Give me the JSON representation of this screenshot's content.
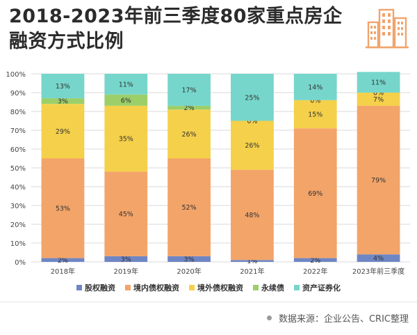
{
  "header": {
    "title": "2018-2023年前三季度80家重点房企融资方式比例"
  },
  "footer": {
    "source": "数据来源：企业公告、CRIC整理"
  },
  "colors": {
    "series": [
      "#6f86c5",
      "#f3a469",
      "#f5d04a",
      "#9ccf6a",
      "#76d6cb"
    ],
    "logo": "#f0a46d"
  },
  "chart_data": {
    "type": "bar",
    "stacked": true,
    "title": "2018-2023年前三季度80家重点房企融资方式比例",
    "xlabel": "",
    "ylabel": "",
    "ylim": [
      0,
      100
    ],
    "yticks": [
      "0%",
      "10%",
      "20%",
      "30%",
      "40%",
      "50%",
      "60%",
      "70%",
      "80%",
      "90%",
      "100%"
    ],
    "categories": [
      "2018年",
      "2019年",
      "2020年",
      "2021年",
      "2022年",
      "2023年前三季度"
    ],
    "series": [
      {
        "name": "股权融资",
        "values": [
          2,
          3,
          3,
          1,
          2,
          4
        ],
        "labels": [
          "2%",
          "3%",
          "3%",
          "1%",
          "2%",
          "4%"
        ]
      },
      {
        "name": "境内债权融资",
        "values": [
          53,
          45,
          52,
          48,
          69,
          79
        ],
        "labels": [
          "53%",
          "45%",
          "52%",
          "48%",
          "69%",
          "79%"
        ]
      },
      {
        "name": "境外债权融资",
        "values": [
          29,
          35,
          26,
          26,
          15,
          7
        ],
        "labels": [
          "29%",
          "35%",
          "26%",
          "26%",
          "15%",
          "7%"
        ]
      },
      {
        "name": "永续债",
        "values": [
          3,
          6,
          2,
          0,
          0,
          0
        ],
        "labels": [
          "3%",
          "6%",
          "2%",
          "0%",
          "0%",
          "0%"
        ]
      },
      {
        "name": "资产证券化",
        "values": [
          13,
          11,
          17,
          25,
          14,
          11
        ],
        "labels": [
          "13%",
          "11%",
          "17%",
          "25%",
          "14%",
          "11%"
        ]
      }
    ],
    "legend_position": "bottom"
  }
}
